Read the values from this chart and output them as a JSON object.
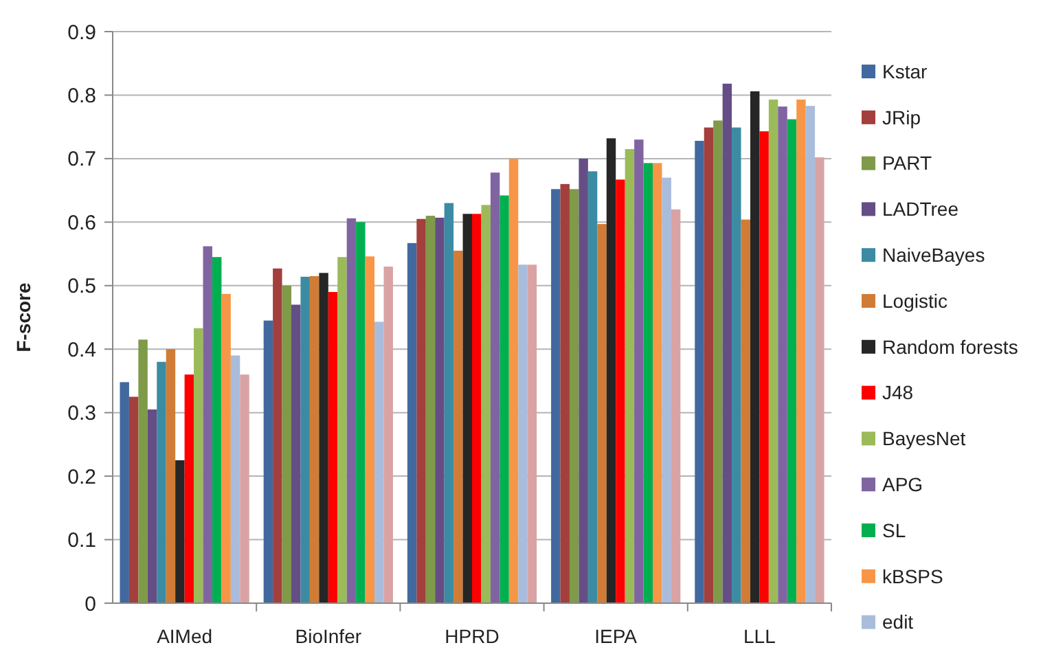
{
  "chart_data": {
    "type": "bar",
    "ylabel": "F-score",
    "categories": [
      "AIMed",
      "BioInfer",
      "HPRD",
      "IEPA",
      "LLL"
    ],
    "ylim": [
      0,
      0.9
    ],
    "yticks": [
      0,
      0.1,
      0.2,
      0.3,
      0.4,
      0.5,
      0.6,
      0.7,
      0.8,
      0.9
    ],
    "grid": "y",
    "legend": "right",
    "series": [
      {
        "name": "Kstar",
        "color": "#4169a0",
        "values": [
          0.348,
          0.445,
          0.567,
          0.652,
          0.728
        ]
      },
      {
        "name": "JRip",
        "color": "#a33f3c",
        "values": [
          0.325,
          0.527,
          0.605,
          0.66,
          0.749
        ]
      },
      {
        "name": "PART",
        "color": "#7f9a48",
        "values": [
          0.415,
          0.5,
          0.61,
          0.652,
          0.76
        ]
      },
      {
        "name": "LADTree",
        "color": "#654d85",
        "values": [
          0.305,
          0.47,
          0.607,
          0.7,
          0.818
        ]
      },
      {
        "name": "NaiveBayes",
        "color": "#3b8ba3",
        "values": [
          0.38,
          0.514,
          0.63,
          0.68,
          0.749
        ]
      },
      {
        "name": "Logistic",
        "color": "#d07c36",
        "values": [
          0.4,
          0.515,
          0.555,
          0.597,
          0.604
        ]
      },
      {
        "name": "Random forests",
        "color": "#262626",
        "values": [
          0.225,
          0.52,
          0.613,
          0.732,
          0.806
        ]
      },
      {
        "name": "J48",
        "color": "#ff0000",
        "values": [
          0.36,
          0.49,
          0.613,
          0.667,
          0.743
        ]
      },
      {
        "name": "BayesNet",
        "color": "#9bbb59",
        "values": [
          0.433,
          0.545,
          0.627,
          0.715,
          0.793
        ]
      },
      {
        "name": "APG",
        "color": "#8064a2",
        "values": [
          0.562,
          0.606,
          0.678,
          0.73,
          0.782
        ]
      },
      {
        "name": "SL",
        "color": "#00b050",
        "values": [
          0.545,
          0.6,
          0.642,
          0.693,
          0.762
        ]
      },
      {
        "name": "kBSPS",
        "color": "#f79646",
        "values": [
          0.487,
          0.546,
          0.7,
          0.693,
          0.793
        ]
      },
      {
        "name": "edit",
        "color": "#a9bcdb",
        "values": [
          0.39,
          0.443,
          0.533,
          0.67,
          0.783
        ]
      },
      {
        "color": "#d9a3a4",
        "values": [
          0.36,
          0.53,
          0.533,
          0.62,
          0.702
        ]
      }
    ]
  }
}
